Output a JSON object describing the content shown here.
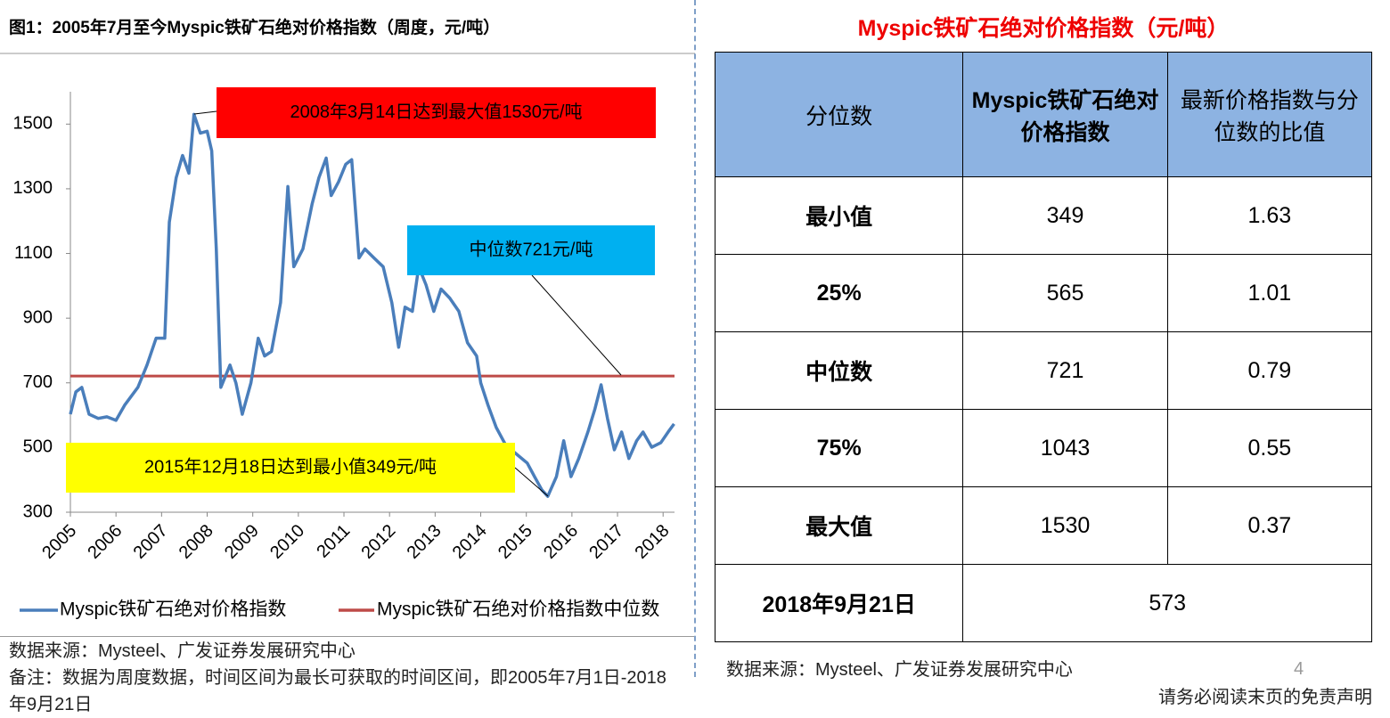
{
  "chart_data": {
    "type": "line",
    "title": "图1：2005年7月至今Myspic铁矿石绝对价格指数（周度，元/吨）",
    "x": [
      2005.0,
      2005.12,
      2005.25,
      2005.41,
      2005.61,
      2005.8,
      2006.0,
      2006.19,
      2006.48,
      2006.68,
      2006.88,
      2007.07,
      2007.17,
      2007.32,
      2007.46,
      2007.6,
      2007.71,
      2007.85,
      2008.0,
      2008.1,
      2008.2,
      2008.3,
      2008.5,
      2008.63,
      2008.77,
      2008.96,
      2009.12,
      2009.26,
      2009.41,
      2009.61,
      2009.77,
      2009.9,
      2010.1,
      2010.3,
      2010.45,
      2010.61,
      2010.72,
      2010.88,
      2011.04,
      2011.17,
      2011.33,
      2011.46,
      2011.66,
      2011.86,
      2012.05,
      2012.2,
      2012.34,
      2012.5,
      2012.64,
      2012.8,
      2012.97,
      2013.13,
      2013.32,
      2013.52,
      2013.71,
      2013.91,
      2014.0,
      2014.16,
      2014.34,
      2014.55,
      2014.79,
      2015.02,
      2015.18,
      2015.34,
      2015.47,
      2015.66,
      2015.82,
      2015.98,
      2016.15,
      2016.35,
      2016.5,
      2016.64,
      2016.78,
      2016.93,
      2017.09,
      2017.25,
      2017.42,
      2017.56,
      2017.75,
      2017.95,
      2018.11,
      2018.24
    ],
    "series": [
      {
        "name": "Myspic铁矿石绝对价格指数",
        "color": "#4a7ebb",
        "values": [
          603,
          672,
          686,
          603,
          590,
          595,
          584,
          631,
          686,
          755,
          838,
          838,
          1197,
          1334,
          1403,
          1348,
          1530,
          1472,
          1478,
          1417,
          1114,
          686,
          755,
          700,
          603,
          700,
          838,
          783,
          797,
          948,
          1307,
          1059,
          1114,
          1252,
          1334,
          1395,
          1279,
          1321,
          1376,
          1390,
          1086,
          1114,
          1086,
          1059,
          948,
          810,
          934,
          921,
          1059,
          1003,
          921,
          990,
          962,
          921,
          824,
          783,
          700,
          631,
          562,
          507,
          479,
          452,
          410,
          369,
          349,
          410,
          521,
          410,
          466,
          548,
          617,
          694,
          590,
          493,
          548,
          466,
          521,
          548,
          501,
          515,
          548,
          573
        ]
      }
    ],
    "reference_lines": [
      {
        "name": "Myspic铁矿石绝对价格指数中位数",
        "color": "#be4b48",
        "value": 721
      }
    ],
    "annotations": [
      "2008年3月14日达到最大值1530元/吨",
      "中位数721元/吨",
      "2015年12月18日达到最小值349元/吨"
    ],
    "xlim": [
      2005,
      2018.25
    ],
    "xticks": [
      2005,
      2006,
      2007,
      2008,
      2009,
      2010,
      2011,
      2012,
      2013,
      2014,
      2015,
      2016,
      2017,
      2018
    ],
    "ylim": [
      300,
      1600
    ],
    "yticks": [
      300,
      500,
      700,
      900,
      1100,
      1300,
      1500
    ]
  },
  "left_notes": [
    "数据来源：Mysteel、广发证券发展研究中心",
    "备注：数据为周度数据，时间区间为最长可获取的时间区间，即2005年7月1日-2018年9月21日"
  ],
  "table": {
    "title": "Myspic铁矿石绝对价格指数（元/吨）",
    "header": [
      "分位数",
      "Myspic铁矿石绝对价格指数",
      "最新价格指数与分位数的比值"
    ],
    "rows": [
      [
        "最小值",
        349,
        1.63
      ],
      [
        "25%",
        565,
        1.01
      ],
      [
        "中位数",
        721,
        0.79
      ],
      [
        "75%",
        1043,
        0.55
      ],
      [
        "最大值",
        1530,
        0.37
      ]
    ],
    "latest": [
      "2018年9月21日",
      573
    ]
  },
  "right_note": "数据来源：Mysteel、广发证券发展研究中心",
  "page_number": 4,
  "disclaimer": "请务必阅读末页的免责声明"
}
